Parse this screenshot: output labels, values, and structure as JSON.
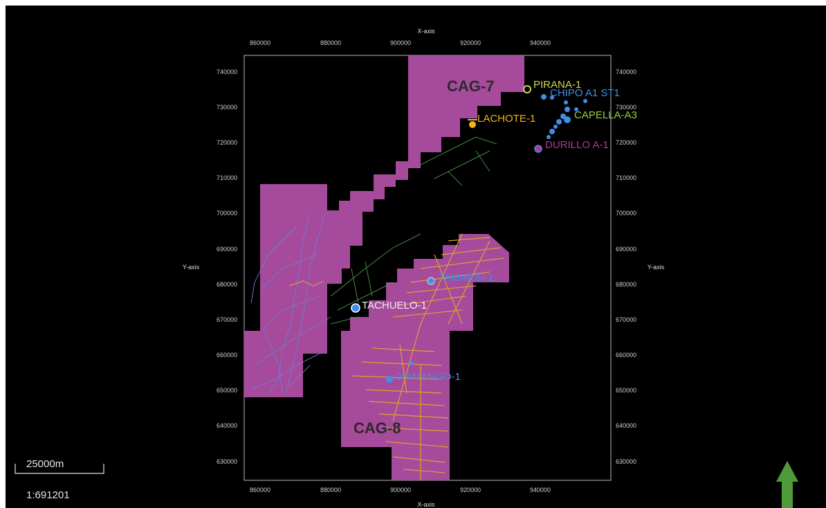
{
  "axes": {
    "x_title": "X-axis",
    "y_title": "Y-axis",
    "x_ticks": [
      860000,
      880000,
      900000,
      920000,
      940000
    ],
    "y_ticks": [
      740000,
      730000,
      720000,
      710000,
      700000,
      690000,
      680000,
      670000,
      660000,
      650000,
      640000,
      630000
    ]
  },
  "blocks": [
    {
      "name": "CAG-7",
      "color": "#a64a9c"
    },
    {
      "name": "CAG-8",
      "color": "#a64a9c"
    }
  ],
  "wells": [
    {
      "name": "PIRANA-1",
      "color": "#cfd84a"
    },
    {
      "name": "CHIPO A1 ST1",
      "color": "#3f8ee8"
    },
    {
      "name": "LACHOTE-1",
      "color": "#f0b320"
    },
    {
      "name": "CAPELLA-A3",
      "color": "#9ed13a"
    },
    {
      "name": "DURILLO A-1",
      "color": "#b0399c"
    },
    {
      "name": "TAMARIN-1",
      "color": "#3f8ee8"
    },
    {
      "name": "TACHUELO-1",
      "color": "#f0f0f0"
    },
    {
      "name": "CHIMANGO-1",
      "color": "#3f8ee8"
    }
  ],
  "scale_bar": {
    "label": "25000m",
    "ratio": "1:691201"
  },
  "north_arrow": {
    "color": "#4f9a3a"
  },
  "seismic_colors": {
    "survey_a": "#6d7fd6",
    "survey_b": "#4e9a4a",
    "survey_c": "#e0a030"
  }
}
